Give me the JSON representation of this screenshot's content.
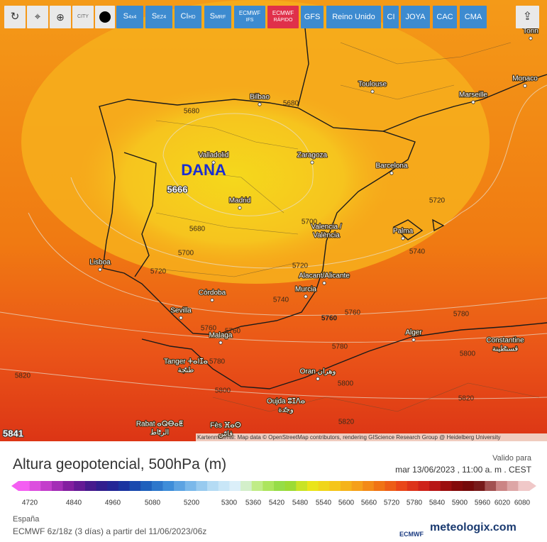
{
  "toolbar": {
    "city_icon": "CITY",
    "buttons": [
      {
        "label": "S",
        "sub": "4x4"
      },
      {
        "label": "S",
        "sub": "EZ4"
      },
      {
        "label": "CI",
        "sub": "HD"
      },
      {
        "label": "S",
        "sub": "MRF"
      },
      {
        "label": "ECMWF",
        "sub": "IFS"
      },
      {
        "label": "ECMWF",
        "sub": "RÁPIDO"
      },
      {
        "label": "GFS"
      },
      {
        "label": "Reino Unido"
      },
      {
        "label": "CI"
      },
      {
        "label": "JOYA"
      },
      {
        "label": "CAC"
      },
      {
        "label": "CMA"
      }
    ]
  },
  "map": {
    "annotation": "DANA",
    "minimum": 5666,
    "corner_value": 5841,
    "cities": [
      {
        "name": "Torin"
      },
      {
        "name": "Bilbao"
      },
      {
        "name": "Toulouse"
      },
      {
        "name": "Marseille"
      },
      {
        "name": "Monaco"
      },
      {
        "name": "Zaragoza"
      },
      {
        "name": "Barcelona"
      },
      {
        "name": "Valladolid"
      },
      {
        "name": "Madrid"
      },
      {
        "name": "Valencia /",
        "alt": "València"
      },
      {
        "name": "Palma"
      },
      {
        "name": "Lisboa"
      },
      {
        "name": "Alacant/Alicante"
      },
      {
        "name": "Murcia"
      },
      {
        "name": "Córdoba"
      },
      {
        "name": "Sevilla"
      },
      {
        "name": "Malaga"
      },
      {
        "name": "Alger"
      },
      {
        "name": "Constantine",
        "alt": "قسنطينة"
      },
      {
        "name": "Tanger ⵜⴰⵏⵊⴰ",
        "alt": "طنجة"
      },
      {
        "name": "Oran وهران"
      },
      {
        "name": "Oujda ⵓⵊⴷⴰ",
        "alt": "وجدة"
      },
      {
        "name": "Rabat ⴰⵕⴱⴰⵟ",
        "alt": "الرباط"
      },
      {
        "name": "Fès ⴼⴰⵙ",
        "alt": "فاس"
      }
    ],
    "contours": [
      5680,
      5680,
      5680,
      5700,
      5720,
      5700,
      5720,
      5720,
      5740,
      5740,
      5760,
      5760,
      5780,
      5760,
      5760,
      5780,
      5780,
      5800,
      5800,
      5800,
      5820,
      5820,
      5820
    ],
    "attribution": "Kartenmaterial: Map data © OpenStreetMap contributors, rendering GIScience Research Group @ Heidelberg University"
  },
  "footer": {
    "title": "Altura geopotencial, 500hPa (m)",
    "valid_label": "Valido para",
    "valid_time": "mar 13/06/2023 , 11:00 a. m . CEST",
    "region": "España",
    "model_run": "ECMWF 6z/18z (3 días) a partir del 11/06/2023/06z",
    "ecmwf_logo": "ECMWF",
    "brand": "meteologix.com"
  },
  "legend": {
    "ticks": [
      4720,
      4840,
      4960,
      5080,
      5200,
      5300,
      5360,
      5420,
      5480,
      5540,
      5600,
      5660,
      5720,
      5780,
      5840,
      5900,
      5960,
      6020,
      6080
    ]
  }
}
